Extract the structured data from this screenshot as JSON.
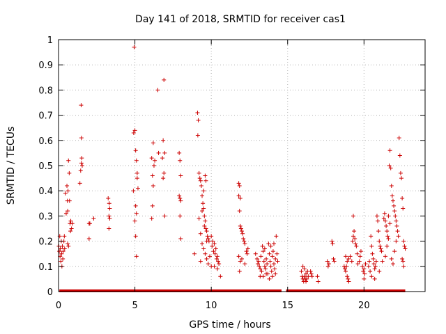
{
  "chart_data": {
    "type": "scatter",
    "title": "Day 141 of 2018, SRMTID for receiver cas1",
    "xlabel": "GPS time / hours",
    "ylabel": "SRMTID / TECUs",
    "xlim": [
      0,
      24
    ],
    "ylim": [
      0,
      1
    ],
    "xticks": [
      0,
      5,
      10,
      15,
      20
    ],
    "xtick_labels": [
      "0",
      "5",
      "10",
      "15",
      "20"
    ],
    "yticks": [
      0,
      0.1,
      0.2,
      0.3,
      0.4,
      0.5,
      0.6,
      0.7,
      0.8,
      0.9,
      1
    ],
    "ytick_labels": [
      "0",
      "0.1",
      "0.2",
      "0.3",
      "0.4",
      "0.5",
      "0.6",
      "0.7",
      "0.8",
      "0.9",
      "1"
    ],
    "grid": true,
    "marker": "+",
    "color": "#cc0000",
    "zero_line": {
      "y": 0,
      "x_ranges": [
        [
          0.05,
          14.6
        ],
        [
          14.9,
          22.7
        ]
      ]
    },
    "series": [
      {
        "name": "SRMTID",
        "points": [
          [
            0.02,
            0.18
          ],
          [
            0.05,
            0.16
          ],
          [
            0.08,
            0.22
          ],
          [
            0.1,
            0.14
          ],
          [
            0.12,
            0.17
          ],
          [
            0.15,
            0.12
          ],
          [
            0.18,
            0.2
          ],
          [
            0.2,
            0.15
          ],
          [
            0.22,
            0.1
          ],
          [
            0.25,
            0.18
          ],
          [
            0.28,
            0.13
          ],
          [
            0.3,
            0.16
          ],
          [
            0.35,
            0.2
          ],
          [
            0.38,
            0.22
          ],
          [
            0.4,
            0.17
          ],
          [
            0.45,
            0.39
          ],
          [
            0.5,
            0.31
          ],
          [
            0.55,
            0.42
          ],
          [
            0.58,
            0.36
          ],
          [
            0.6,
            0.32
          ],
          [
            0.62,
            0.4
          ],
          [
            0.65,
            0.52
          ],
          [
            0.7,
            0.47
          ],
          [
            0.72,
            0.36
          ],
          [
            0.75,
            0.27
          ],
          [
            0.78,
            0.24
          ],
          [
            0.8,
            0.28
          ],
          [
            0.85,
            0.25
          ],
          [
            0.9,
            0.27
          ],
          [
            0.6,
            0.19
          ],
          [
            0.65,
            0.18
          ],
          [
            1.4,
            0.43
          ],
          [
            1.45,
            0.48
          ],
          [
            1.5,
            0.51
          ],
          [
            1.52,
            0.53
          ],
          [
            1.55,
            0.5
          ],
          [
            1.48,
            0.74
          ],
          [
            1.5,
            0.61
          ],
          [
            2.0,
            0.27
          ],
          [
            2.05,
            0.27
          ],
          [
            2.0,
            0.21
          ],
          [
            2.3,
            0.29
          ],
          [
            3.25,
            0.37
          ],
          [
            3.3,
            0.3
          ],
          [
            3.32,
            0.35
          ],
          [
            3.35,
            0.29
          ],
          [
            3.3,
            0.25
          ],
          [
            3.35,
            0.33
          ],
          [
            4.95,
            0.97
          ],
          [
            4.9,
            0.4
          ],
          [
            4.92,
            0.63
          ],
          [
            5.0,
            0.64
          ],
          [
            5.05,
            0.56
          ],
          [
            5.1,
            0.52
          ],
          [
            5.15,
            0.47
          ],
          [
            5.05,
            0.34
          ],
          [
            5.1,
            0.31
          ],
          [
            5.0,
            0.28
          ],
          [
            5.05,
            0.22
          ],
          [
            5.1,
            0.14
          ],
          [
            5.15,
            0.45
          ],
          [
            5.2,
            0.41
          ],
          [
            6.1,
            0.53
          ],
          [
            6.15,
            0.46
          ],
          [
            6.2,
            0.42
          ],
          [
            6.25,
            0.5
          ],
          [
            6.3,
            0.52
          ],
          [
            6.2,
            0.59
          ],
          [
            6.15,
            0.34
          ],
          [
            6.1,
            0.29
          ],
          [
            6.5,
            0.8
          ],
          [
            6.55,
            0.55
          ],
          [
            6.9,
            0.84
          ],
          [
            6.85,
            0.6
          ],
          [
            6.8,
            0.53
          ],
          [
            6.85,
            0.45
          ],
          [
            6.9,
            0.47
          ],
          [
            6.95,
            0.55
          ],
          [
            6.95,
            0.3
          ],
          [
            7.9,
            0.55
          ],
          [
            7.95,
            0.52
          ],
          [
            8.0,
            0.46
          ],
          [
            7.9,
            0.38
          ],
          [
            7.95,
            0.37
          ],
          [
            8.0,
            0.36
          ],
          [
            7.95,
            0.3
          ],
          [
            8.0,
            0.21
          ],
          [
            8.9,
            0.15
          ],
          [
            9.1,
            0.71
          ],
          [
            9.15,
            0.68
          ],
          [
            9.12,
            0.62
          ],
          [
            9.2,
            0.47
          ],
          [
            9.25,
            0.45
          ],
          [
            9.3,
            0.44
          ],
          [
            9.35,
            0.42
          ],
          [
            9.4,
            0.38
          ],
          [
            9.45,
            0.35
          ],
          [
            9.5,
            0.33
          ],
          [
            9.55,
            0.3
          ],
          [
            9.6,
            0.28
          ],
          [
            9.65,
            0.25
          ],
          [
            9.7,
            0.24
          ],
          [
            9.75,
            0.22
          ],
          [
            9.8,
            0.21
          ],
          [
            9.85,
            0.2
          ],
          [
            9.2,
            0.29
          ],
          [
            9.3,
            0.23
          ],
          [
            9.4,
            0.19
          ],
          [
            9.5,
            0.17
          ],
          [
            9.6,
            0.15
          ],
          [
            9.7,
            0.13
          ],
          [
            9.3,
            0.12
          ],
          [
            9.8,
            0.11
          ],
          [
            9.9,
            0.14
          ],
          [
            9.6,
            0.46
          ],
          [
            9.65,
            0.44
          ],
          [
            9.5,
            0.4
          ],
          [
            9.4,
            0.32
          ],
          [
            9.55,
            0.26
          ],
          [
            9.7,
            0.2
          ],
          [
            10.0,
            0.22
          ],
          [
            10.05,
            0.18
          ],
          [
            10.1,
            0.2
          ],
          [
            10.15,
            0.16
          ],
          [
            10.2,
            0.19
          ],
          [
            10.25,
            0.15
          ],
          [
            10.3,
            0.17
          ],
          [
            10.35,
            0.13
          ],
          [
            10.4,
            0.14
          ],
          [
            10.45,
            0.12
          ],
          [
            10.5,
            0.11
          ],
          [
            10.0,
            0.1
          ],
          [
            10.2,
            0.1
          ],
          [
            10.4,
            0.09
          ],
          [
            10.6,
            0.06
          ],
          [
            11.8,
            0.43
          ],
          [
            11.85,
            0.42
          ],
          [
            11.8,
            0.38
          ],
          [
            11.9,
            0.37
          ],
          [
            11.85,
            0.32
          ],
          [
            11.9,
            0.26
          ],
          [
            11.95,
            0.25
          ],
          [
            12.0,
            0.24
          ],
          [
            12.05,
            0.23
          ],
          [
            12.1,
            0.21
          ],
          [
            12.15,
            0.2
          ],
          [
            12.2,
            0.19
          ],
          [
            11.8,
            0.14
          ],
          [
            11.9,
            0.12
          ],
          [
            11.85,
            0.08
          ],
          [
            12.0,
            0.13
          ],
          [
            12.3,
            0.16
          ],
          [
            12.35,
            0.15
          ],
          [
            12.4,
            0.17
          ],
          [
            12.2,
            0.11
          ],
          [
            12.9,
            0.15
          ],
          [
            13.0,
            0.13
          ],
          [
            13.05,
            0.11
          ],
          [
            13.1,
            0.12
          ],
          [
            13.15,
            0.1
          ],
          [
            13.2,
            0.09
          ],
          [
            13.25,
            0.14
          ],
          [
            13.3,
            0.08
          ],
          [
            13.35,
            0.18
          ],
          [
            13.4,
            0.16
          ],
          [
            13.45,
            0.12
          ],
          [
            13.5,
            0.1
          ],
          [
            13.55,
            0.09
          ],
          [
            13.6,
            0.13
          ],
          [
            13.65,
            0.11
          ],
          [
            13.7,
            0.07
          ],
          [
            13.75,
            0.19
          ],
          [
            13.8,
            0.15
          ],
          [
            13.85,
            0.12
          ],
          [
            13.9,
            0.1
          ],
          [
            13.95,
            0.08
          ],
          [
            14.0,
            0.14
          ],
          [
            14.05,
            0.16
          ],
          [
            14.1,
            0.11
          ],
          [
            14.15,
            0.09
          ],
          [
            14.2,
            0.13
          ],
          [
            14.25,
            0.22
          ],
          [
            14.3,
            0.15
          ],
          [
            14.35,
            0.12
          ],
          [
            13.2,
            0.06
          ],
          [
            13.4,
            0.06
          ],
          [
            13.6,
            0.07
          ],
          [
            13.8,
            0.05
          ],
          [
            14.0,
            0.06
          ],
          [
            14.2,
            0.07
          ],
          [
            13.5,
            0.17
          ],
          [
            13.9,
            0.18
          ],
          [
            14.1,
            0.19
          ],
          [
            15.9,
            0.08
          ],
          [
            15.95,
            0.06
          ],
          [
            16.0,
            0.05
          ],
          [
            16.05,
            0.04
          ],
          [
            16.1,
            0.06
          ],
          [
            16.15,
            0.05
          ],
          [
            16.2,
            0.07
          ],
          [
            16.25,
            0.05
          ],
          [
            16.3,
            0.08
          ],
          [
            16.35,
            0.06
          ],
          [
            16.0,
            0.1
          ],
          [
            16.1,
            0.09
          ],
          [
            16.2,
            0.04
          ],
          [
            16.5,
            0.08
          ],
          [
            16.55,
            0.07
          ],
          [
            16.6,
            0.06
          ],
          [
            16.95,
            0.06
          ],
          [
            17.0,
            0.04
          ],
          [
            17.6,
            0.12
          ],
          [
            17.65,
            0.1
          ],
          [
            17.7,
            0.11
          ],
          [
            17.9,
            0.2
          ],
          [
            17.95,
            0.19
          ],
          [
            18.0,
            0.13
          ],
          [
            18.05,
            0.12
          ],
          [
            18.7,
            0.1
          ],
          [
            18.75,
            0.09
          ],
          [
            18.8,
            0.08
          ],
          [
            18.85,
            0.1
          ],
          [
            18.9,
            0.06
          ],
          [
            18.95,
            0.05
          ],
          [
            19.0,
            0.04
          ],
          [
            18.8,
            0.14
          ],
          [
            18.9,
            0.12
          ],
          [
            19.0,
            0.13
          ],
          [
            19.1,
            0.14
          ],
          [
            19.2,
            0.12
          ],
          [
            19.25,
            0.2
          ],
          [
            19.3,
            0.22
          ],
          [
            19.35,
            0.24
          ],
          [
            19.4,
            0.21
          ],
          [
            19.45,
            0.19
          ],
          [
            19.5,
            0.18
          ],
          [
            19.3,
            0.3
          ],
          [
            19.55,
            0.15
          ],
          [
            19.6,
            0.11
          ],
          [
            19.7,
            0.12
          ],
          [
            19.75,
            0.14
          ],
          [
            19.8,
            0.16
          ],
          [
            19.9,
            0.1
          ],
          [
            19.95,
            0.08
          ],
          [
            20.0,
            0.09
          ],
          [
            20.05,
            0.07
          ],
          [
            20.1,
            0.11
          ],
          [
            20.0,
            0.05
          ],
          [
            20.3,
            0.1
          ],
          [
            20.35,
            0.12
          ],
          [
            20.4,
            0.08
          ],
          [
            20.45,
            0.22
          ],
          [
            20.5,
            0.18
          ],
          [
            20.55,
            0.15
          ],
          [
            20.6,
            0.13
          ],
          [
            20.65,
            0.11
          ],
          [
            20.7,
            0.09
          ],
          [
            20.75,
            0.1
          ],
          [
            20.8,
            0.12
          ],
          [
            20.85,
            0.3
          ],
          [
            20.9,
            0.28
          ],
          [
            20.95,
            0.24
          ],
          [
            21.0,
            0.2
          ],
          [
            21.05,
            0.18
          ],
          [
            21.1,
            0.17
          ],
          [
            21.15,
            0.16
          ],
          [
            21.2,
            0.12
          ],
          [
            20.5,
            0.06
          ],
          [
            20.7,
            0.05
          ],
          [
            21.0,
            0.08
          ],
          [
            21.3,
            0.29
          ],
          [
            21.35,
            0.31
          ],
          [
            21.4,
            0.28
          ],
          [
            21.45,
            0.26
          ],
          [
            21.5,
            0.24
          ],
          [
            21.55,
            0.22
          ],
          [
            21.6,
            0.21
          ],
          [
            21.65,
            0.5
          ],
          [
            21.7,
            0.56
          ],
          [
            21.75,
            0.49
          ],
          [
            21.8,
            0.42
          ],
          [
            21.85,
            0.38
          ],
          [
            21.9,
            0.36
          ],
          [
            21.95,
            0.34
          ],
          [
            22.0,
            0.32
          ],
          [
            22.05,
            0.3
          ],
          [
            22.1,
            0.28
          ],
          [
            22.15,
            0.26
          ],
          [
            22.2,
            0.24
          ],
          [
            22.25,
            0.22
          ],
          [
            22.3,
            0.61
          ],
          [
            22.35,
            0.54
          ],
          [
            22.4,
            0.47
          ],
          [
            22.45,
            0.45
          ],
          [
            22.5,
            0.37
          ],
          [
            22.55,
            0.33
          ],
          [
            22.6,
            0.2
          ],
          [
            22.65,
            0.18
          ],
          [
            22.7,
            0.17
          ],
          [
            22.5,
            0.13
          ],
          [
            22.55,
            0.12
          ],
          [
            22.6,
            0.1
          ],
          [
            21.8,
            0.13
          ],
          [
            21.9,
            0.11
          ],
          [
            22.0,
            0.16
          ],
          [
            22.1,
            0.2
          ],
          [
            21.6,
            0.3
          ],
          [
            21.7,
            0.27
          ],
          [
            21.5,
            0.18
          ],
          [
            21.4,
            0.14
          ]
        ]
      }
    ]
  }
}
